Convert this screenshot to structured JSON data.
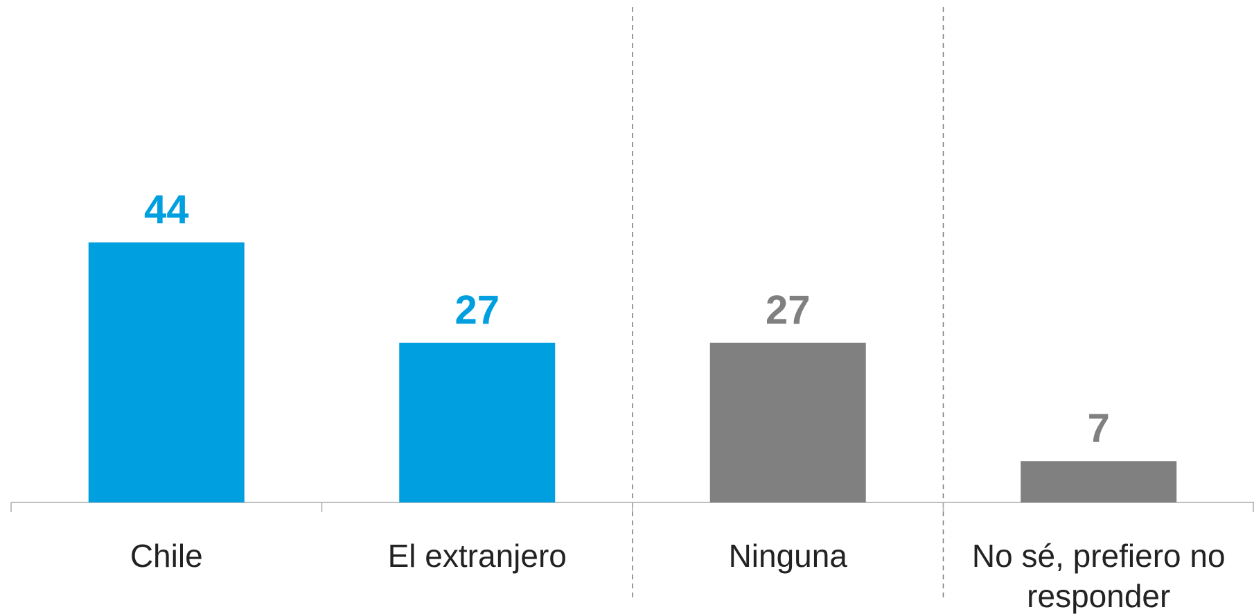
{
  "chart_data": {
    "type": "bar",
    "categories": [
      "Chile",
      "El extranjero",
      "Ninguna",
      "No sé, prefiero no responder"
    ],
    "values": [
      44,
      27,
      27,
      7
    ],
    "colors": [
      "#009fdf",
      "#009fdf",
      "#808080",
      "#808080"
    ],
    "ylim": [
      0,
      85
    ]
  }
}
